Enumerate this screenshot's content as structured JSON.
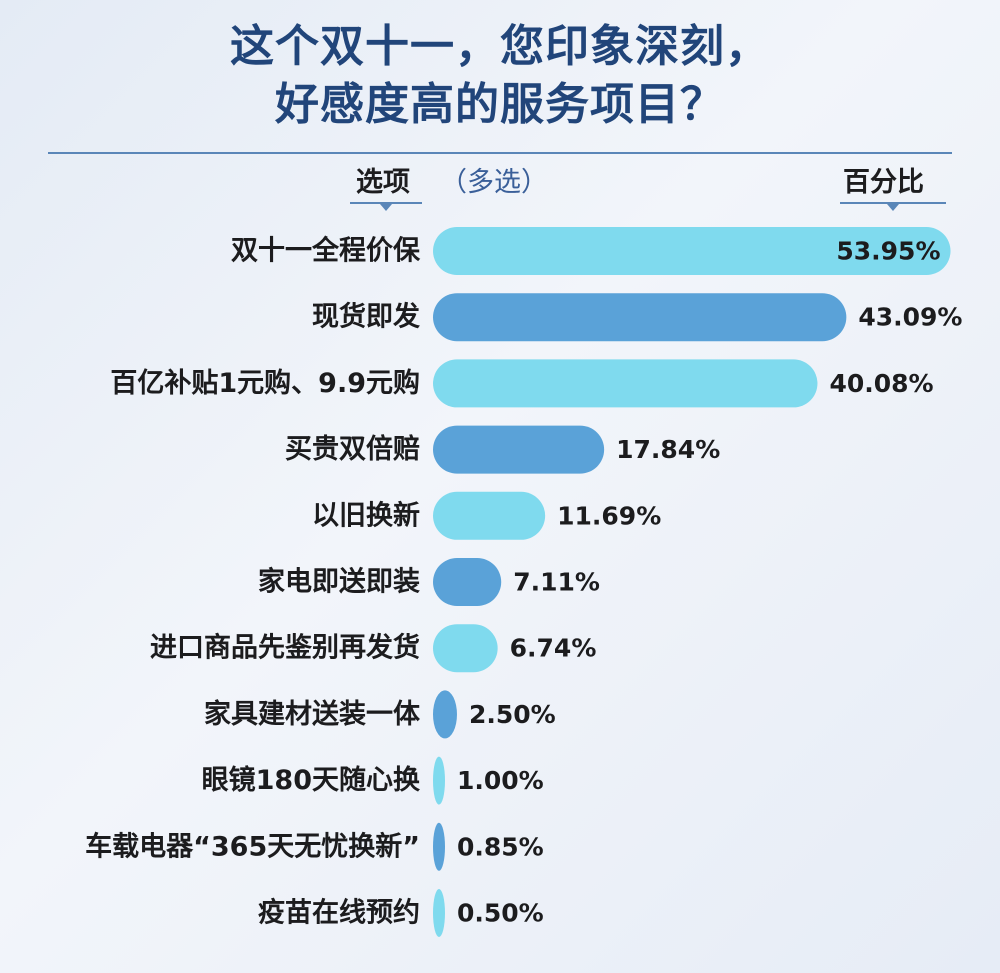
{
  "title_line1": "这个双十一，您印象深刻，",
  "title_line2": "好感度高的服务项目？",
  "header": {
    "options": "选项",
    "multi": "（多选）",
    "percent": "百分比"
  },
  "colors": {
    "light_bar": "#7fdaee",
    "dark_bar": "#5aa2d8",
    "title": "#21457a"
  },
  "chart_data": {
    "type": "bar",
    "orientation": "horizontal",
    "categories": [
      "双十一全程价保",
      "现货即发",
      "百亿补贴1元购、9.9元购",
      "买贵双倍赔",
      "以旧换新",
      "家电即送即装",
      "进口商品先鉴别再发货",
      "家具建材送装一体",
      "眼镜180天随心换",
      "车载电器“365天无忧换新”",
      "疫苗在线预约"
    ],
    "values": [
      53.95,
      43.09,
      40.08,
      17.84,
      11.69,
      7.11,
      6.74,
      2.5,
      1.0,
      0.85,
      0.5
    ],
    "value_labels": [
      "53.95%",
      "43.09%",
      "40.08%",
      "17.84%",
      "11.69%",
      "7.11%",
      "6.74%",
      "2.50%",
      "1.00%",
      "0.85%",
      "0.50%"
    ],
    "bar_colors": [
      "light",
      "dark",
      "light",
      "dark",
      "light",
      "dark",
      "light",
      "dark",
      "light",
      "dark",
      "light"
    ],
    "xlim": [
      0,
      54
    ],
    "unit": "%"
  }
}
